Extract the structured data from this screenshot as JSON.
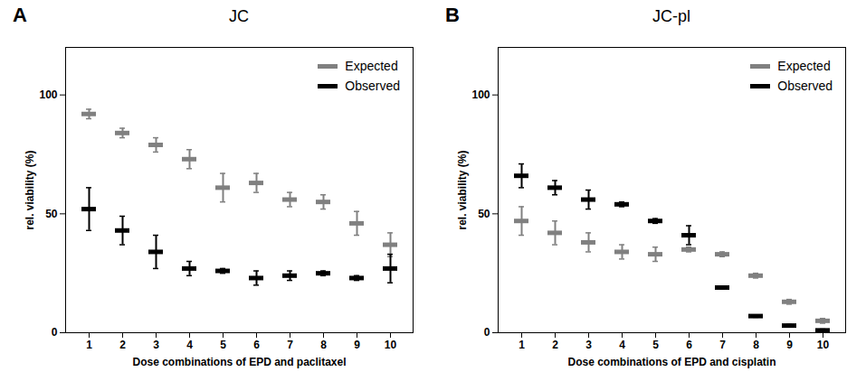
{
  "chart_data": [
    {
      "type": "scatter",
      "title": "JC",
      "annotations": [
        "A"
      ],
      "x_label": "Dose combinations of EPD and paclitaxel",
      "y_label": "rel. viability (%)",
      "categories": [
        1,
        2,
        3,
        4,
        5,
        6,
        7,
        8,
        9,
        10
      ],
      "ylim": [
        0,
        120
      ],
      "yticks": [
        0,
        50,
        100
      ],
      "legend": "top-right",
      "marker": "dash",
      "series": [
        {
          "name": "Expected",
          "color": "#808080",
          "values": [
            92,
            84,
            79,
            73,
            61,
            63,
            56,
            55,
            46,
            37
          ],
          "errors": [
            2,
            2,
            3,
            4,
            6,
            4,
            3,
            3,
            5,
            5
          ]
        },
        {
          "name": "Observed",
          "color": "#000000",
          "values": [
            52,
            43,
            34,
            27,
            26,
            23,
            24,
            25,
            23,
            27
          ],
          "errors": [
            9,
            6,
            7,
            3,
            1,
            3,
            2,
            1,
            1,
            6
          ]
        }
      ]
    },
    {
      "type": "scatter",
      "title": "JC-pl",
      "annotations": [
        "B"
      ],
      "x_label": "Dose combinations of EPD and cisplatin",
      "y_label": "rel. viability (%)",
      "categories": [
        1,
        2,
        3,
        4,
        5,
        6,
        7,
        8,
        9,
        10
      ],
      "ylim": [
        0,
        120
      ],
      "yticks": [
        0,
        50,
        100
      ],
      "legend": "top-right",
      "marker": "dash",
      "series": [
        {
          "name": "Expected",
          "color": "#808080",
          "values": [
            47,
            42,
            38,
            34,
            33,
            35,
            33,
            24,
            13,
            5
          ],
          "errors": [
            6,
            5,
            4,
            3,
            3,
            1,
            1,
            1,
            1,
            1
          ]
        },
        {
          "name": "Observed",
          "color": "#000000",
          "values": [
            66,
            61,
            56,
            54,
            47,
            41,
            19,
            7,
            3,
            1
          ],
          "errors": [
            5,
            3,
            4,
            1,
            1,
            4,
            0.5,
            0.5,
            0.5,
            0.5
          ]
        }
      ]
    }
  ]
}
